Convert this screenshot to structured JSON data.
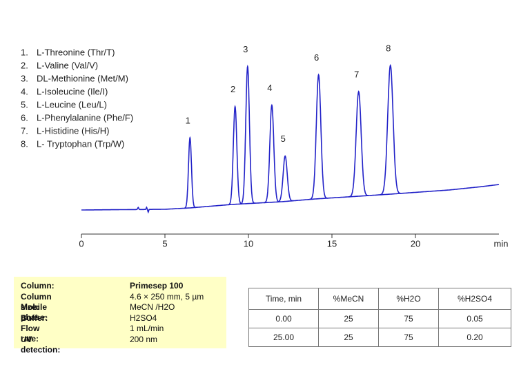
{
  "chart_data": {
    "type": "chromatogram",
    "color": "#2222c8",
    "peaks": [
      {
        "label": "1",
        "index": "1.",
        "name": "L-Threonine (Thr/T)",
        "time": 6.5,
        "height": 102
      },
      {
        "label": "2",
        "index": "2.",
        "name": "L-Valine (Val/V)",
        "time": 9.2,
        "height": 142
      },
      {
        "label": "3",
        "index": "3.",
        "name": "DL-Methionine (Met/M)",
        "time": 9.95,
        "height": 199
      },
      {
        "label": "4",
        "index": "4.",
        "name": "L-Isoleucine (Ile/I)",
        "time": 11.4,
        "height": 141
      },
      {
        "label": "5",
        "index": "5.",
        "name": "L-Leucine (Leu/L)",
        "time": 12.2,
        "height": 66
      },
      {
        "label": "6",
        "index": "6.",
        "name": "L-Phenylalanine (Phe/F)",
        "time": 14.2,
        "height": 180
      },
      {
        "label": "7",
        "index": "7.",
        "name": "L-Histidine (His/H)",
        "time": 16.6,
        "height": 152
      },
      {
        "label": "8",
        "index": "8.",
        "name": "L- Tryptophan (Trp/W)",
        "time": 18.5,
        "height": 187
      }
    ],
    "xlim": [
      0,
      25
    ],
    "xticks": [
      0,
      5,
      10,
      15,
      20
    ],
    "x_label": "min"
  },
  "conditions": [
    [
      "Column:",
      "Primesep 100"
    ],
    [
      "Column size:",
      "4.6 × 250 mm, 5 µm"
    ],
    [
      "Mobile phase:",
      "MeCN /H2O"
    ],
    [
      "Buffer:",
      "H2SO4"
    ],
    [
      "Flow rate:",
      "1 mL/min"
    ],
    [
      "UV detection:",
      "200 nm"
    ]
  ],
  "gradient_table": {
    "header": [
      "Time, min",
      "%MeCN",
      "%H2O",
      "%H2SO4"
    ],
    "rows": [
      [
        "0.00",
        "25",
        "75",
        "0.05"
      ],
      [
        "25.00",
        "25",
        "75",
        "0.20"
      ]
    ]
  }
}
